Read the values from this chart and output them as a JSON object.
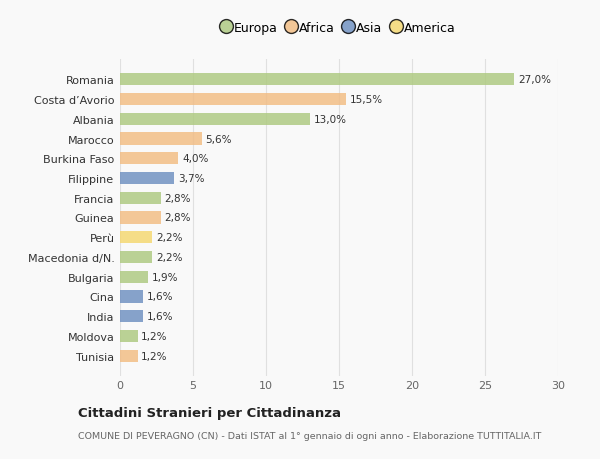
{
  "categories": [
    "Tunisia",
    "Moldova",
    "India",
    "Cina",
    "Bulgaria",
    "Macedonia d/N.",
    "Perù",
    "Guinea",
    "Francia",
    "Filippine",
    "Burkina Faso",
    "Marocco",
    "Albania",
    "Costa d’Avorio",
    "Romania"
  ],
  "values": [
    1.2,
    1.2,
    1.6,
    1.6,
    1.9,
    2.2,
    2.2,
    2.8,
    2.8,
    3.7,
    4.0,
    5.6,
    13.0,
    15.5,
    27.0
  ],
  "labels": [
    "1,2%",
    "1,2%",
    "1,6%",
    "1,6%",
    "1,9%",
    "2,2%",
    "2,2%",
    "2,8%",
    "2,8%",
    "3,7%",
    "4,0%",
    "5,6%",
    "13,0%",
    "15,5%",
    "27,0%"
  ],
  "continents": [
    "Africa",
    "Europa",
    "Asia",
    "Asia",
    "Europa",
    "Europa",
    "America",
    "Africa",
    "Europa",
    "Asia",
    "Africa",
    "Africa",
    "Europa",
    "Africa",
    "Europa"
  ],
  "colors": {
    "Europa": "#adc97f",
    "Africa": "#f2bc82",
    "Asia": "#6d8fc0",
    "America": "#f5d76e"
  },
  "title": "Cittadini Stranieri per Cittadinanza",
  "subtitle": "COMUNE DI PEVERAGNO (CN) - Dati ISTAT al 1° gennaio di ogni anno - Elaborazione TUTTITALIA.IT",
  "xlim": [
    0,
    30
  ],
  "xticks": [
    0,
    5,
    10,
    15,
    20,
    25,
    30
  ],
  "background_color": "#f9f9f9",
  "grid_color": "#e0e0e0",
  "bar_alpha": 0.82,
  "legend_order": [
    "Europa",
    "Africa",
    "Asia",
    "America"
  ]
}
